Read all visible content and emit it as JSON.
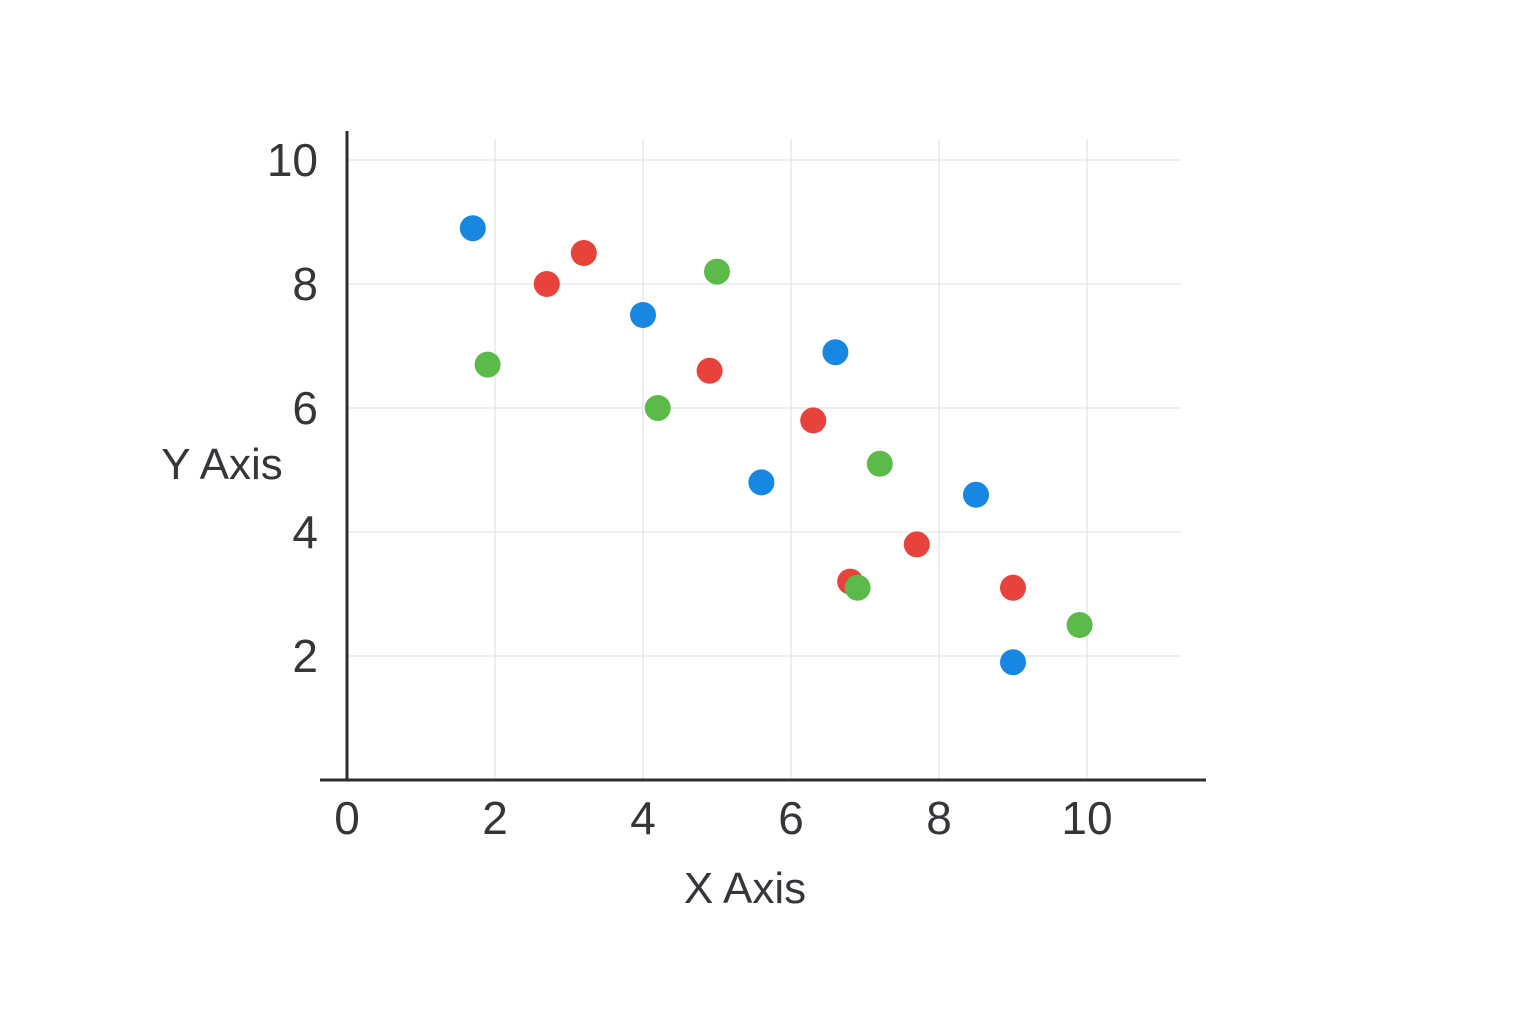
{
  "chart_data": {
    "type": "scatter",
    "title": "",
    "xlabel": "X Axis",
    "ylabel": "Y Axis",
    "x_ticks": [
      0,
      2,
      4,
      6,
      8,
      10
    ],
    "y_ticks": [
      2,
      4,
      6,
      8,
      10
    ],
    "xlim": [
      0,
      11.6
    ],
    "ylim": [
      0,
      10.4
    ],
    "grid": true,
    "legend_position": "none",
    "colors": {
      "axis": "#2c2e30",
      "grid": "#e8e9ea",
      "text": "#33373c",
      "background": "#ffffff"
    },
    "series": [
      {
        "name": "blue-series",
        "color": "#1787E1",
        "points": [
          [
            1.7,
            8.9
          ],
          [
            4.0,
            7.5
          ],
          [
            5.6,
            4.8
          ],
          [
            6.6,
            6.9
          ],
          [
            8.5,
            4.6
          ],
          [
            9.0,
            1.9
          ]
        ]
      },
      {
        "name": "red-series",
        "color": "#E8423C",
        "points": [
          [
            2.7,
            8.0
          ],
          [
            3.2,
            8.5
          ],
          [
            4.9,
            6.6
          ],
          [
            6.3,
            5.8
          ],
          [
            6.8,
            3.2
          ],
          [
            7.7,
            3.8
          ],
          [
            9.0,
            3.1
          ]
        ]
      },
      {
        "name": "green-series",
        "color": "#5CBA4A",
        "points": [
          [
            1.9,
            6.7
          ],
          [
            4.2,
            6.0
          ],
          [
            5.0,
            8.2
          ],
          [
            6.9,
            3.1
          ],
          [
            7.2,
            5.1
          ],
          [
            9.9,
            2.5
          ]
        ]
      }
    ]
  }
}
